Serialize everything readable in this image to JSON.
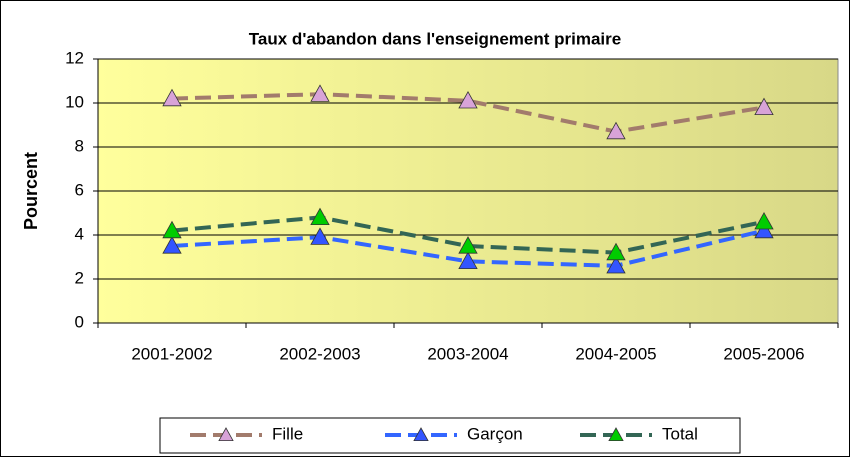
{
  "chart_data": {
    "type": "line",
    "title": "Taux d'abandon dans l'enseignement primaire",
    "y_label": "Pourcent",
    "categories": [
      "2001-2002",
      "2002-2003",
      "2003-2004",
      "2004-2005",
      "2005-2006"
    ],
    "series": [
      {
        "name": "Fille",
        "color": "#a27b6c",
        "marker_color": "#d8a3d8",
        "values": [
          10.2,
          10.4,
          10.1,
          8.7,
          9.8
        ]
      },
      {
        "name": "Garçon",
        "color": "#3366ff",
        "marker_color": "#3355ff",
        "values": [
          3.5,
          3.9,
          2.8,
          2.6,
          4.2
        ]
      },
      {
        "name": "Total",
        "color": "#336655",
        "marker_color": "#00cc00",
        "values": [
          4.2,
          4.8,
          3.5,
          3.2,
          4.6
        ]
      }
    ],
    "ylim": [
      0,
      12
    ],
    "yticks": [
      0,
      2,
      4,
      6,
      8,
      10,
      12
    ],
    "grid": true,
    "legend": "bottom"
  }
}
